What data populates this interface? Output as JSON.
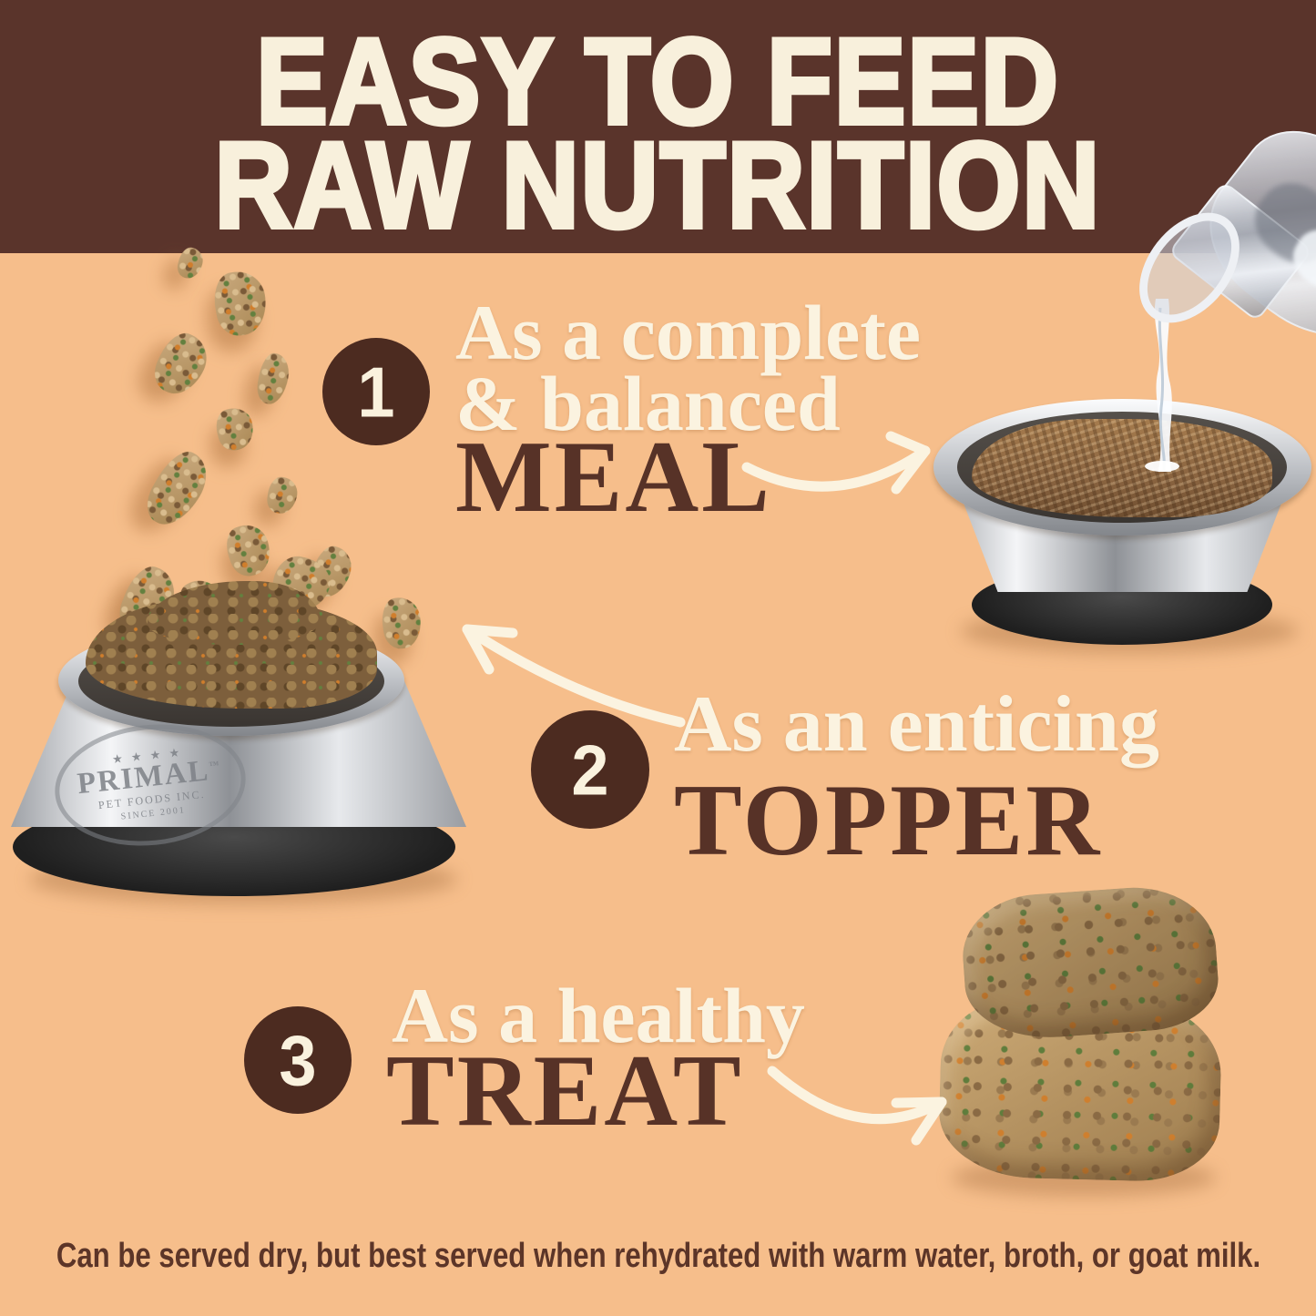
{
  "header": {
    "line1": "EASY TO FEED",
    "line2": "RAW NUTRITION"
  },
  "steps": [
    {
      "number": "1",
      "lead": "As a complete",
      "lead2": "& balanced",
      "keyword": "MEAL"
    },
    {
      "number": "2",
      "lead": "As an enticing",
      "lead2": "",
      "keyword": "TOPPER"
    },
    {
      "number": "3",
      "lead": "As a healthy",
      "lead2": "",
      "keyword": "TREAT"
    }
  ],
  "bowl_logo": {
    "stars": "★ ★ ★ ★",
    "brand": "PRIMAL",
    "tm": "™",
    "sub": "PET FOODS INC.",
    "since": "SINCE 2001"
  },
  "footer": {
    "note": "Can be served dry, but best served when rehydrated with warm water, broth, or goat milk."
  },
  "figures": {
    "meal_bowl": "steel-bowl-with-shredded-food-and-water-pour",
    "topper_bowl": "steel-primal-bowl-with-kibble-and-falling-raw-pieces",
    "treats": "two-stacked-freeze-dried-nuggets",
    "water_bottle": "glass-bottle-pouring-water"
  },
  "icons": {
    "arrow1": "curved-arrow-right",
    "arrow2": "curved-arrow-left",
    "arrow3": "curved-arrow-right"
  },
  "colors": {
    "background": "#f6be8b",
    "header_bg": "#5a342b",
    "cream_text": "#fbf3e0",
    "brown_text": "#573227",
    "circle_bg": "#4c2b20",
    "caption_text": "#5c3528"
  }
}
